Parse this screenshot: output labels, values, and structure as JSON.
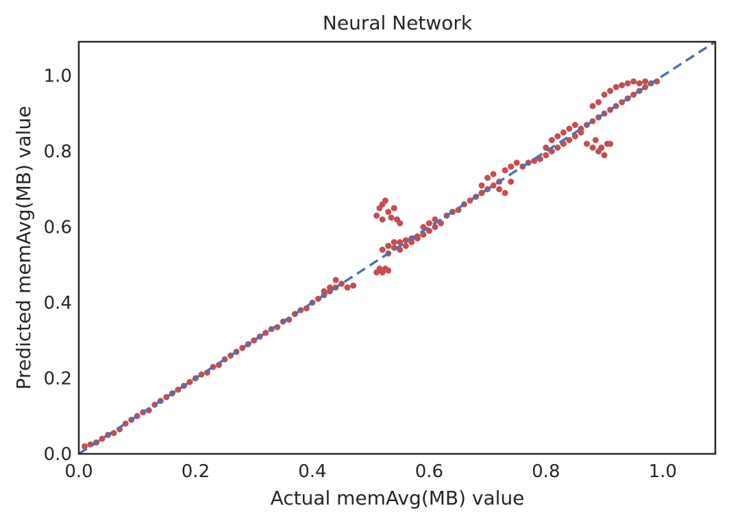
{
  "chart_data": {
    "type": "scatter",
    "title": "Neural Network",
    "xlabel": "Actual memAvg(MB) value",
    "ylabel": "Predicted memAvg(MB) value",
    "xlim": [
      0.0,
      1.09
    ],
    "ylim": [
      0.0,
      1.09
    ],
    "x_ticks": [
      {
        "value": 0.0,
        "label": "0.0"
      },
      {
        "value": 0.2,
        "label": "0.2"
      },
      {
        "value": 0.4,
        "label": "0.4"
      },
      {
        "value": 0.6,
        "label": "0.6"
      },
      {
        "value": 0.8,
        "label": "0.8"
      },
      {
        "value": 1.0,
        "label": "1.0"
      }
    ],
    "y_ticks": [
      {
        "value": 0.0,
        "label": "0.0"
      },
      {
        "value": 0.2,
        "label": "0.2"
      },
      {
        "value": 0.4,
        "label": "0.4"
      },
      {
        "value": 0.6,
        "label": "0.6"
      },
      {
        "value": 0.8,
        "label": "0.8"
      },
      {
        "value": 1.0,
        "label": "1.0"
      }
    ],
    "grid": false,
    "reference_line": {
      "from": [
        0.0,
        0.0
      ],
      "to": [
        1.09,
        1.09
      ],
      "style": "dashed",
      "color": "#4c72b0"
    },
    "series": [
      {
        "color": "#c44e52",
        "points": [
          [
            0.01,
            0.02
          ],
          [
            0.02,
            0.025
          ],
          [
            0.03,
            0.03
          ],
          [
            0.04,
            0.04
          ],
          [
            0.05,
            0.05
          ],
          [
            0.06,
            0.055
          ],
          [
            0.07,
            0.065
          ],
          [
            0.08,
            0.08
          ],
          [
            0.09,
            0.09
          ],
          [
            0.1,
            0.1
          ],
          [
            0.11,
            0.11
          ],
          [
            0.12,
            0.115
          ],
          [
            0.13,
            0.13
          ],
          [
            0.14,
            0.14
          ],
          [
            0.15,
            0.15
          ],
          [
            0.16,
            0.16
          ],
          [
            0.17,
            0.17
          ],
          [
            0.18,
            0.18
          ],
          [
            0.19,
            0.19
          ],
          [
            0.2,
            0.2
          ],
          [
            0.21,
            0.21
          ],
          [
            0.22,
            0.215
          ],
          [
            0.23,
            0.23
          ],
          [
            0.24,
            0.235
          ],
          [
            0.25,
            0.25
          ],
          [
            0.26,
            0.26
          ],
          [
            0.27,
            0.27
          ],
          [
            0.28,
            0.28
          ],
          [
            0.29,
            0.29
          ],
          [
            0.3,
            0.3
          ],
          [
            0.31,
            0.31
          ],
          [
            0.32,
            0.32
          ],
          [
            0.33,
            0.33
          ],
          [
            0.34,
            0.335
          ],
          [
            0.35,
            0.35
          ],
          [
            0.36,
            0.355
          ],
          [
            0.37,
            0.37
          ],
          [
            0.38,
            0.38
          ],
          [
            0.39,
            0.385
          ],
          [
            0.4,
            0.4
          ],
          [
            0.41,
            0.41
          ],
          [
            0.42,
            0.42
          ],
          [
            0.43,
            0.44
          ],
          [
            0.44,
            0.46
          ],
          [
            0.45,
            0.45
          ],
          [
            0.46,
            0.44
          ],
          [
            0.47,
            0.445
          ],
          [
            0.43,
            0.43
          ],
          [
            0.42,
            0.43
          ],
          [
            0.44,
            0.44
          ],
          [
            0.51,
            0.48
          ],
          [
            0.515,
            0.49
          ],
          [
            0.52,
            0.48
          ],
          [
            0.525,
            0.49
          ],
          [
            0.53,
            0.485
          ],
          [
            0.51,
            0.63
          ],
          [
            0.515,
            0.65
          ],
          [
            0.52,
            0.66
          ],
          [
            0.525,
            0.67
          ],
          [
            0.53,
            0.64
          ],
          [
            0.54,
            0.65
          ],
          [
            0.545,
            0.62
          ],
          [
            0.55,
            0.61
          ],
          [
            0.52,
            0.62
          ],
          [
            0.535,
            0.625
          ],
          [
            0.52,
            0.54
          ],
          [
            0.53,
            0.55
          ],
          [
            0.54,
            0.545
          ],
          [
            0.55,
            0.56
          ],
          [
            0.56,
            0.565
          ],
          [
            0.57,
            0.57
          ],
          [
            0.58,
            0.575
          ],
          [
            0.59,
            0.58
          ],
          [
            0.6,
            0.59
          ],
          [
            0.61,
            0.6
          ],
          [
            0.53,
            0.53
          ],
          [
            0.54,
            0.56
          ],
          [
            0.55,
            0.54
          ],
          [
            0.56,
            0.55
          ],
          [
            0.57,
            0.56
          ],
          [
            0.58,
            0.57
          ],
          [
            0.59,
            0.6
          ],
          [
            0.6,
            0.61
          ],
          [
            0.61,
            0.62
          ],
          [
            0.62,
            0.61
          ],
          [
            0.63,
            0.63
          ],
          [
            0.64,
            0.64
          ],
          [
            0.65,
            0.645
          ],
          [
            0.66,
            0.66
          ],
          [
            0.67,
            0.67
          ],
          [
            0.68,
            0.68
          ],
          [
            0.69,
            0.69
          ],
          [
            0.7,
            0.7
          ],
          [
            0.71,
            0.71
          ],
          [
            0.72,
            0.72
          ],
          [
            0.69,
            0.71
          ],
          [
            0.7,
            0.73
          ],
          [
            0.71,
            0.74
          ],
          [
            0.72,
            0.7
          ],
          [
            0.73,
            0.69
          ],
          [
            0.74,
            0.72
          ],
          [
            0.73,
            0.75
          ],
          [
            0.74,
            0.76
          ],
          [
            0.75,
            0.77
          ],
          [
            0.76,
            0.76
          ],
          [
            0.77,
            0.77
          ],
          [
            0.78,
            0.775
          ],
          [
            0.79,
            0.78
          ],
          [
            0.8,
            0.79
          ],
          [
            0.81,
            0.8
          ],
          [
            0.82,
            0.81
          ],
          [
            0.83,
            0.82
          ],
          [
            0.84,
            0.83
          ],
          [
            0.85,
            0.84
          ],
          [
            0.86,
            0.85
          ],
          [
            0.8,
            0.81
          ],
          [
            0.81,
            0.83
          ],
          [
            0.82,
            0.84
          ],
          [
            0.83,
            0.85
          ],
          [
            0.84,
            0.86
          ],
          [
            0.85,
            0.87
          ],
          [
            0.86,
            0.86
          ],
          [
            0.87,
            0.87
          ],
          [
            0.88,
            0.88
          ],
          [
            0.89,
            0.89
          ],
          [
            0.87,
            0.82
          ],
          [
            0.88,
            0.81
          ],
          [
            0.89,
            0.8
          ],
          [
            0.9,
            0.79
          ],
          [
            0.91,
            0.82
          ],
          [
            0.885,
            0.83
          ],
          [
            0.895,
            0.81
          ],
          [
            0.905,
            0.82
          ],
          [
            0.9,
            0.9
          ],
          [
            0.91,
            0.91
          ],
          [
            0.92,
            0.92
          ],
          [
            0.93,
            0.93
          ],
          [
            0.94,
            0.94
          ],
          [
            0.95,
            0.95
          ],
          [
            0.96,
            0.96
          ],
          [
            0.97,
            0.97
          ],
          [
            0.98,
            0.98
          ],
          [
            0.99,
            0.985
          ],
          [
            0.92,
            0.97
          ],
          [
            0.93,
            0.975
          ],
          [
            0.94,
            0.98
          ],
          [
            0.95,
            0.985
          ],
          [
            0.96,
            0.98
          ],
          [
            0.97,
            0.985
          ],
          [
            0.91,
            0.96
          ],
          [
            0.9,
            0.95
          ],
          [
            0.89,
            0.93
          ],
          [
            0.88,
            0.92
          ]
        ]
      }
    ]
  }
}
